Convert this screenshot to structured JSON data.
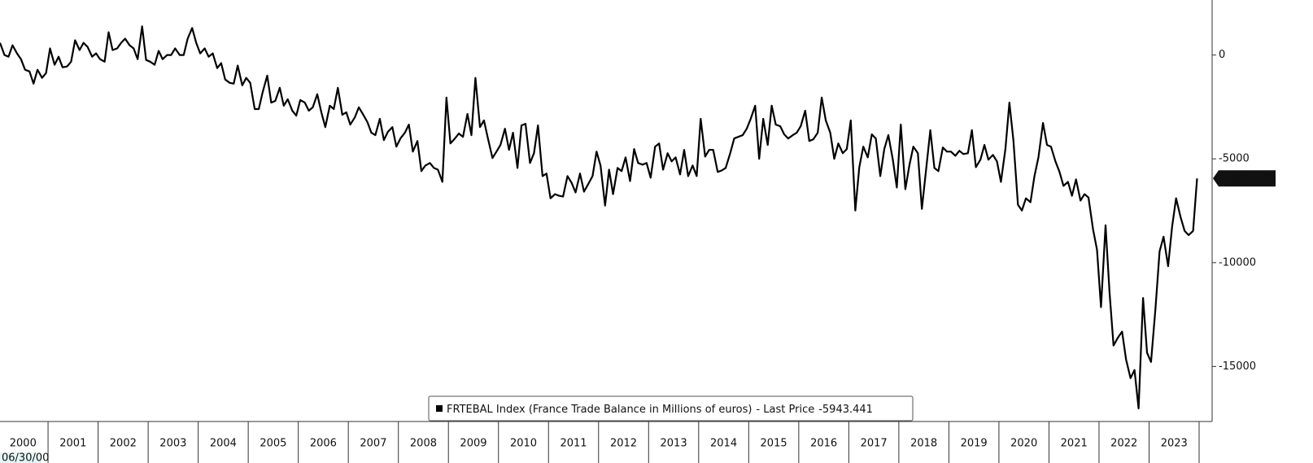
{
  "chart_data": {
    "type": "line",
    "start_date_label": "06/30/00",
    "last_price_label": "- Last Price",
    "x": [
      2000.04,
      2000.13,
      2000.21,
      2000.29,
      2000.38,
      2000.46,
      2000.54,
      2000.63,
      2000.71,
      2000.79,
      2000.88,
      2000.96,
      2001.04,
      2001.13,
      2001.21,
      2001.29,
      2001.38,
      2001.46,
      2001.54,
      2001.63,
      2001.71,
      2001.79,
      2001.88,
      2001.96,
      2002.04,
      2002.13,
      2002.21,
      2002.29,
      2002.38,
      2002.46,
      2002.54,
      2002.63,
      2002.71,
      2002.79,
      2002.88,
      2002.96,
      2003.04,
      2003.13,
      2003.21,
      2003.29,
      2003.38,
      2003.46,
      2003.54,
      2003.63,
      2003.71,
      2003.79,
      2003.88,
      2003.96,
      2004.04,
      2004.13,
      2004.21,
      2004.29,
      2004.38,
      2004.46,
      2004.54,
      2004.63,
      2004.71,
      2004.79,
      2004.88,
      2004.96,
      2005.04,
      2005.13,
      2005.21,
      2005.29,
      2005.38,
      2005.46,
      2005.54,
      2005.63,
      2005.71,
      2005.79,
      2005.88,
      2005.96,
      2006.04,
      2006.13,
      2006.21,
      2006.29,
      2006.38,
      2006.46,
      2006.54,
      2006.63,
      2006.71,
      2006.79,
      2006.88,
      2006.96,
      2007.04,
      2007.13,
      2007.21,
      2007.29,
      2007.38,
      2007.46,
      2007.54,
      2007.63,
      2007.71,
      2007.79,
      2007.88,
      2007.96,
      2008.04,
      2008.13,
      2008.21,
      2008.29,
      2008.38,
      2008.46,
      2008.54,
      2008.63,
      2008.71,
      2008.79,
      2008.88,
      2008.96,
      2009.04,
      2009.13,
      2009.21,
      2009.29,
      2009.38,
      2009.46,
      2009.54,
      2009.63,
      2009.71,
      2009.79,
      2009.88,
      2009.96,
      2010.04,
      2010.13,
      2010.21,
      2010.29,
      2010.38,
      2010.46,
      2010.54,
      2010.63,
      2010.71,
      2010.79,
      2010.88,
      2010.96,
      2011.04,
      2011.13,
      2011.21,
      2011.29,
      2011.38,
      2011.46,
      2011.54,
      2011.63,
      2011.71,
      2011.79,
      2011.88,
      2011.96,
      2012.04,
      2012.13,
      2012.21,
      2012.29,
      2012.38,
      2012.46,
      2012.54,
      2012.63,
      2012.71,
      2012.79,
      2012.88,
      2012.96,
      2013.04,
      2013.13,
      2013.21,
      2013.29,
      2013.38,
      2013.46,
      2013.54,
      2013.63,
      2013.71,
      2013.79,
      2013.88,
      2013.96,
      2014.04,
      2014.13,
      2014.21,
      2014.29,
      2014.38,
      2014.46,
      2014.54,
      2014.63,
      2014.71,
      2014.79,
      2014.88,
      2014.96,
      2015.04,
      2015.13,
      2015.21,
      2015.29,
      2015.38,
      2015.46,
      2015.54,
      2015.63,
      2015.71,
      2015.79,
      2015.88,
      2015.96,
      2016.04,
      2016.13,
      2016.21,
      2016.29,
      2016.38,
      2016.46,
      2016.54,
      2016.63,
      2016.71,
      2016.79,
      2016.88,
      2016.96,
      2017.04,
      2017.13,
      2017.21,
      2017.29,
      2017.38,
      2017.46,
      2017.54,
      2017.63,
      2017.71,
      2017.79,
      2017.88,
      2017.96,
      2018.04,
      2018.13,
      2018.21,
      2018.29,
      2018.38,
      2018.46,
      2018.54,
      2018.63,
      2018.71,
      2018.79,
      2018.88,
      2018.96,
      2019.04,
      2019.13,
      2019.21,
      2019.29,
      2019.38,
      2019.46,
      2019.54,
      2019.63,
      2019.71,
      2019.79,
      2019.88,
      2019.96,
      2020.04,
      2020.13,
      2020.21,
      2020.29,
      2020.38,
      2020.46,
      2020.54,
      2020.63,
      2020.71,
      2020.79,
      2020.88,
      2020.96,
      2021.04,
      2021.13,
      2021.21,
      2021.29,
      2021.38,
      2021.46,
      2021.54,
      2021.63,
      2021.71,
      2021.79,
      2021.88,
      2021.96,
      2022.04,
      2022.13,
      2022.21,
      2022.29,
      2022.38,
      2022.46,
      2022.54,
      2022.63,
      2022.71,
      2022.79,
      2022.88,
      2022.96,
      2023.04,
      2023.13,
      2023.21,
      2023.29,
      2023.38,
      2023.46,
      2023.54,
      2023.63,
      2023.71,
      2023.79,
      2023.88,
      2023.96
    ],
    "series": [
      {
        "name": "FRTEBAL Index (France Trade Balance in Millions of euros)",
        "color": "#000000",
        "values": [
          590,
          0,
          -80,
          470,
          80,
          -200,
          -710,
          -790,
          -1380,
          -710,
          -1100,
          -870,
          320,
          -470,
          -80,
          -590,
          -550,
          -320,
          710,
          240,
          590,
          390,
          -80,
          80,
          -200,
          -320,
          1100,
          240,
          320,
          590,
          790,
          470,
          320,
          -200,
          1380,
          -240,
          -320,
          -470,
          200,
          -200,
          0,
          0,
          320,
          0,
          0,
          790,
          1300,
          590,
          80,
          320,
          -80,
          80,
          -630,
          -390,
          -1180,
          -1340,
          -1380,
          -510,
          -1460,
          -1100,
          -1340,
          -2600,
          -2600,
          -1770,
          -990,
          -2290,
          -2210,
          -1580,
          -2440,
          -2130,
          -2680,
          -2920,
          -2170,
          -2290,
          -2680,
          -2520,
          -1890,
          -2760,
          -3470,
          -2440,
          -2600,
          -1580,
          -2880,
          -2760,
          -3350,
          -3000,
          -2520,
          -2840,
          -3230,
          -3740,
          -3860,
          -3070,
          -4100,
          -3700,
          -3470,
          -4410,
          -4020,
          -3740,
          -3350,
          -4650,
          -4140,
          -5590,
          -5320,
          -5200,
          -5440,
          -5520,
          -6110,
          -2050,
          -4260,
          -4020,
          -3780,
          -3940,
          -2840,
          -3860,
          -1100,
          -3470,
          -3150,
          -4020,
          -4960,
          -4650,
          -4330,
          -3550,
          -4570,
          -3740,
          -5440,
          -3390,
          -3310,
          -5200,
          -4730,
          -3390,
          -5830,
          -5710,
          -6900,
          -6700,
          -6780,
          -6820,
          -5830,
          -6150,
          -6620,
          -5710,
          -6580,
          -6230,
          -5830,
          -4650,
          -5320,
          -7250,
          -5520,
          -6700,
          -5440,
          -5590,
          -4930,
          -6070,
          -4530,
          -5200,
          -5280,
          -5200,
          -5910,
          -4410,
          -4260,
          -5520,
          -4730,
          -5120,
          -4930,
          -5750,
          -4570,
          -5830,
          -5320,
          -5830,
          -3070,
          -4890,
          -4570,
          -4570,
          -5630,
          -5560,
          -5440,
          -4730,
          -4020,
          -3940,
          -3860,
          -3550,
          -3070,
          -2440,
          -5000,
          -3070,
          -4330,
          -2440,
          -3350,
          -3430,
          -3820,
          -4020,
          -3860,
          -3740,
          -3430,
          -2680,
          -4140,
          -4060,
          -3740,
          -2050,
          -3150,
          -3740,
          -5000,
          -4260,
          -4730,
          -4530,
          -3150,
          -7490,
          -5400,
          -4410,
          -4930,
          -3820,
          -4020,
          -5830,
          -4530,
          -3860,
          -5040,
          -6380,
          -3350,
          -6460,
          -5320,
          -4410,
          -4730,
          -7410,
          -5630,
          -3620,
          -5440,
          -5590,
          -4450,
          -4650,
          -4650,
          -4850,
          -4610,
          -4770,
          -4730,
          -3620,
          -5400,
          -5040,
          -4330,
          -5040,
          -4810,
          -5120,
          -6110,
          -4530,
          -2290,
          -4140,
          -7210,
          -7490,
          -6900,
          -7090,
          -5830,
          -4930,
          -3270,
          -4330,
          -4410,
          -5120,
          -5630,
          -6300,
          -6110,
          -6780,
          -5990,
          -7010,
          -6700,
          -6860,
          -8390,
          -9380,
          -12140,
          -8200,
          -11430,
          -13990,
          -13600,
          -13320,
          -14660,
          -15560,
          -15170,
          -17020,
          -11700,
          -14340,
          -14780,
          -12140,
          -9460,
          -8750,
          -10170,
          -8270,
          -6900,
          -7800,
          -8470,
          -8670,
          -8470,
          -5943.441
        ]
      }
    ],
    "xlim": [
      2000.04,
      2024.26
    ],
    "xticks": [
      {
        "value": 2000.5,
        "label": "2000"
      },
      {
        "value": 2001.5,
        "label": "2001"
      },
      {
        "value": 2002.5,
        "label": "2002"
      },
      {
        "value": 2003.5,
        "label": "2003"
      },
      {
        "value": 2004.5,
        "label": "2004"
      },
      {
        "value": 2005.5,
        "label": "2005"
      },
      {
        "value": 2006.5,
        "label": "2006"
      },
      {
        "value": 2007.5,
        "label": "2007"
      },
      {
        "value": 2008.5,
        "label": "2008"
      },
      {
        "value": 2009.5,
        "label": "2009"
      },
      {
        "value": 2010.5,
        "label": "2010"
      },
      {
        "value": 2011.5,
        "label": "2011"
      },
      {
        "value": 2012.5,
        "label": "2012"
      },
      {
        "value": 2013.5,
        "label": "2013"
      },
      {
        "value": 2014.5,
        "label": "2014"
      },
      {
        "value": 2015.5,
        "label": "2015"
      },
      {
        "value": 2016.5,
        "label": "2016"
      },
      {
        "value": 2017.5,
        "label": "2017"
      },
      {
        "value": 2018.5,
        "label": "2018"
      },
      {
        "value": 2019.5,
        "label": "2019"
      },
      {
        "value": 2020.5,
        "label": "2020"
      },
      {
        "value": 2021.5,
        "label": "2021"
      },
      {
        "value": 2022.5,
        "label": "2022"
      },
      {
        "value": 2023.5,
        "label": "2023"
      }
    ],
    "ylim": [
      -17650,
      2650
    ],
    "yticks": [
      0,
      -5000,
      -10000,
      -15000
    ],
    "grid": false
  }
}
